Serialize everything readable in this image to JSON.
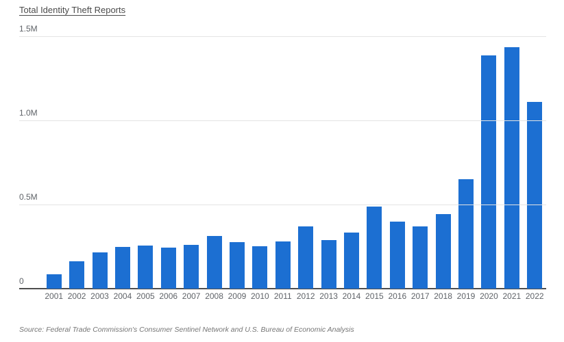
{
  "chart": {
    "title": "Total Identity Theft Reports",
    "source": "Source: Federal Trade Commission's Consumer Sentinel Network and U.S. Bureau of Economic Analysis"
  },
  "colors": {
    "bar": "#1c6fd2",
    "grid": "#e4e4e4",
    "axis": "#4d4d4d",
    "tick_text": "#5f6368",
    "source_text": "#757575"
  },
  "chart_data": {
    "type": "bar",
    "title": "Total Identity Theft Reports",
    "xlabel": "",
    "ylabel": "",
    "categories": [
      "2001",
      "2002",
      "2003",
      "2004",
      "2005",
      "2006",
      "2007",
      "2008",
      "2009",
      "2010",
      "2011",
      "2012",
      "2013",
      "2014",
      "2015",
      "2016",
      "2017",
      "2018",
      "2019",
      "2020",
      "2021",
      "2022"
    ],
    "values_millions": [
      0.086,
      0.162,
      0.215,
      0.247,
      0.256,
      0.246,
      0.259,
      0.315,
      0.278,
      0.251,
      0.279,
      0.369,
      0.29,
      0.333,
      0.49,
      0.399,
      0.371,
      0.445,
      0.651,
      1.388,
      1.435,
      1.109
    ],
    "ylim_millions": [
      0,
      1.5
    ],
    "y_ticks": [
      {
        "value": 1.5,
        "label": "1.5M"
      },
      {
        "value": 1.0,
        "label": "1.0M"
      },
      {
        "value": 0.5,
        "label": "0.5M"
      },
      {
        "value": 0.0,
        "label": "0"
      }
    ],
    "grid": true,
    "legend": false,
    "bar_color": "#1c6fd2"
  }
}
